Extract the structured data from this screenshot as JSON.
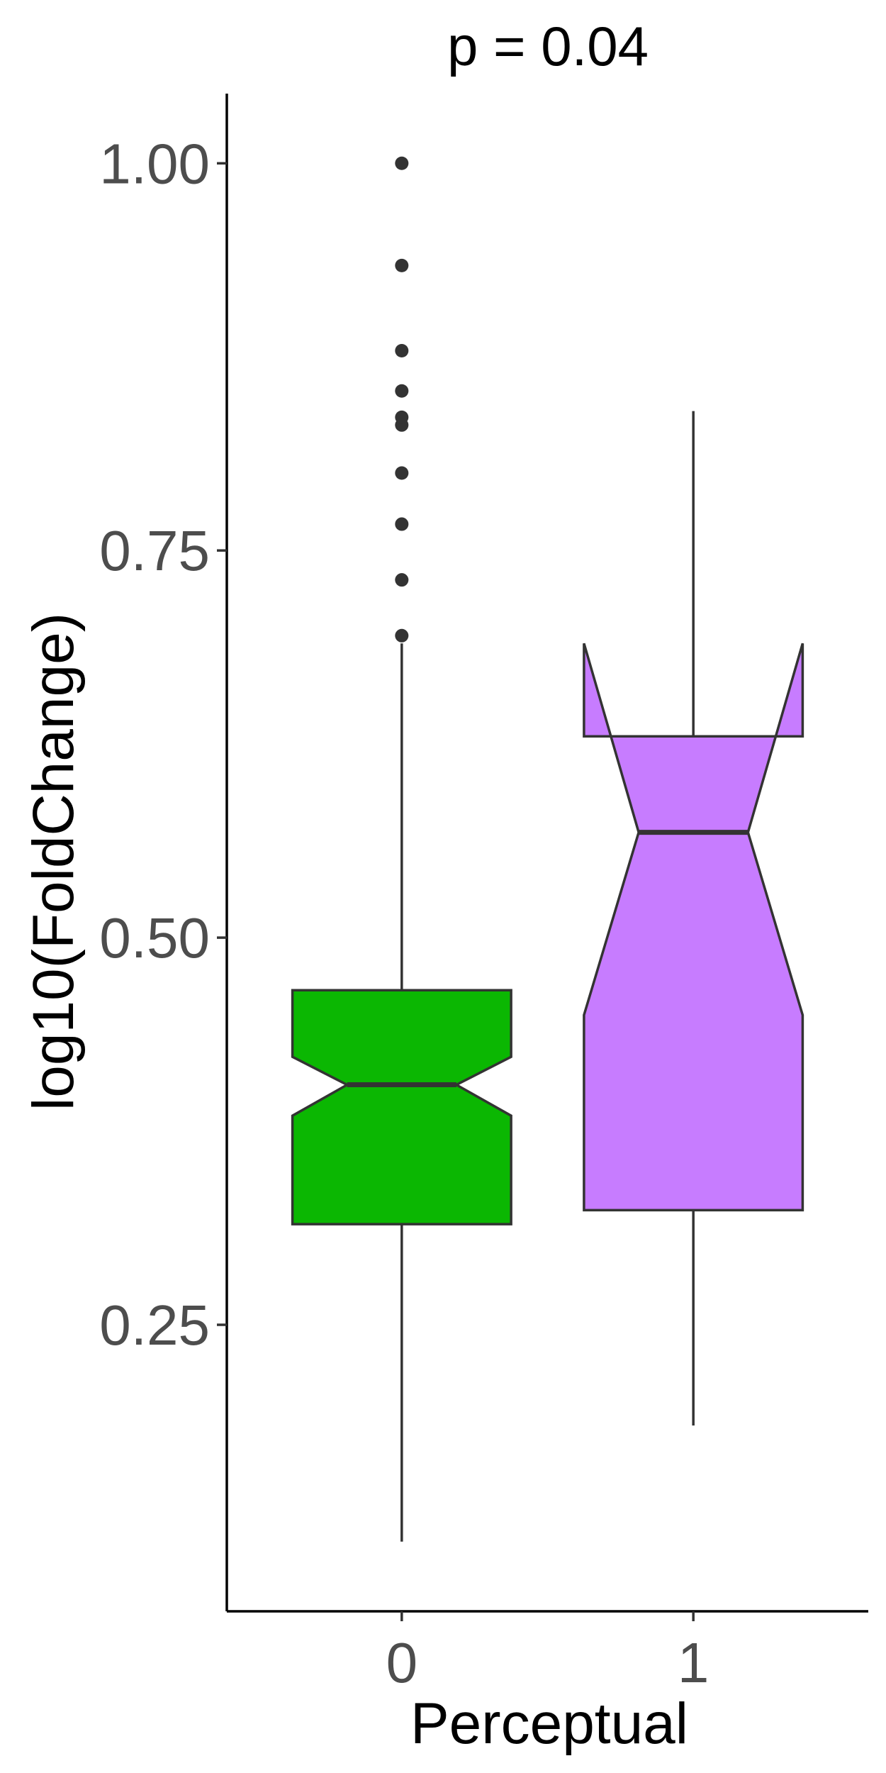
{
  "chart_data": {
    "type": "boxplot",
    "title": "p = 0.04",
    "xlabel": "Perceptual",
    "ylabel": "log10(FoldChange)",
    "categories": [
      "0",
      "1"
    ],
    "ylim": [
      0.065,
      1.045
    ],
    "y_ticks": [
      0.25,
      0.5,
      0.75,
      1.0
    ],
    "y_tick_labels": [
      "0.25",
      "0.50",
      "0.75",
      "1.00"
    ],
    "notched": true,
    "grid": false,
    "legend": "none",
    "boxes": [
      {
        "category": "0",
        "color": "#0BB702",
        "whisker_low": 0.11,
        "q1": 0.315,
        "notch_low": 0.385,
        "median": 0.405,
        "notch_high": 0.423,
        "q3": 0.466,
        "whisker_high": 0.69,
        "outliers": [
          0.695,
          0.731,
          0.767,
          0.8,
          0.831,
          0.836,
          0.853,
          0.879,
          0.934,
          1.0
        ]
      },
      {
        "category": "1",
        "color": "#C77CFF",
        "whisker_low": 0.185,
        "q1": 0.324,
        "notch_low": 0.45,
        "median": 0.568,
        "notch_high": 0.69,
        "q3": 0.63,
        "whisker_high": 0.84,
        "outliers": []
      }
    ]
  }
}
